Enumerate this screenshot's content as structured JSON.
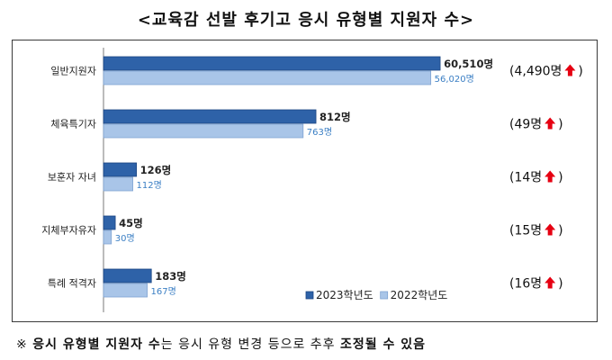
{
  "header": {
    "title": "<교육감 선발 후기고 응시 유형별 지원자 수>"
  },
  "footnote": {
    "mark": "※",
    "bold1": "응시 유형별 지원자 수",
    "text1": "는 응시 유형 변경 등으로 추후 ",
    "bold2": "조정될 수 있음"
  },
  "chart_data": {
    "type": "bar",
    "orientation": "horizontal",
    "categories": [
      "일반지원자",
      "체육특기자",
      "보훈자 자녀",
      "지체부자유자",
      "특례 적격자"
    ],
    "series": [
      {
        "name": "2023학년도",
        "values": [
          60510,
          812,
          126,
          45,
          183
        ],
        "color": "#2e62a8",
        "labels": [
          "60,510명",
          "812명",
          "126명",
          "45명",
          "183명"
        ]
      },
      {
        "name": "2022학년도",
        "values": [
          56020,
          763,
          112,
          30,
          167
        ],
        "color": "#a9c5e8",
        "labels": [
          "56,020명",
          "763명",
          "112명",
          "30명",
          "167명"
        ]
      }
    ],
    "changes": [
      "(4,490명 ⬆)",
      "(49명 ⬆)",
      "(14명 ⬆)",
      "(15명 ⬆)",
      "(16명 ⬆)"
    ],
    "change_arrow_color": "#e60012",
    "axis_break": true,
    "legend": "bottom-right",
    "grid": false
  }
}
